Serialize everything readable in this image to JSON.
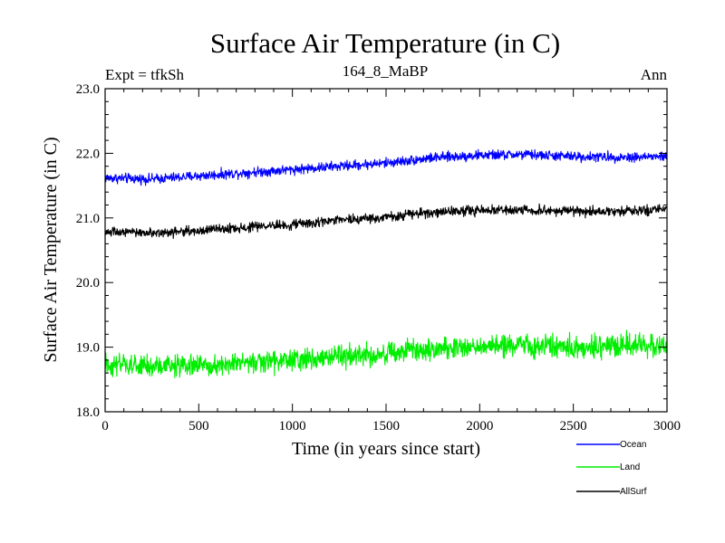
{
  "chart_data": {
    "type": "line",
    "title": "Surface Air Temperature (in C)",
    "subtitle_left": "Expt = tfkSh",
    "subtitle_center": "164_8_MaBP",
    "subtitle_right": "Ann",
    "xlabel": "Time (in years since start)",
    "ylabel": "Surface Air Temperature (in C)",
    "xlim": [
      0,
      3000
    ],
    "ylim": [
      18.0,
      23.0
    ],
    "xticks": [
      0,
      500,
      1000,
      1500,
      2000,
      2500,
      3000
    ],
    "xtick_labels": [
      "0",
      "500",
      "1000",
      "1500",
      "2000",
      "2500",
      "3000"
    ],
    "yticks": [
      18.0,
      19.0,
      20.0,
      21.0,
      22.0,
      23.0
    ],
    "ytick_labels": [
      "18.0",
      "19.0",
      "20.0",
      "21.0",
      "22.0",
      "23.0"
    ],
    "grid": false,
    "legend_position": "bottom-right, below plot",
    "series": [
      {
        "name": "Ocean",
        "color": "#0000ff",
        "x": [
          0,
          250,
          500,
          750,
          1000,
          1250,
          1500,
          1750,
          2000,
          2250,
          2500,
          2750,
          3000
        ],
        "values": [
          21.62,
          21.6,
          21.65,
          21.7,
          21.75,
          21.8,
          21.85,
          21.93,
          21.97,
          21.98,
          21.95,
          21.94,
          21.95
        ],
        "noise_amplitude": 0.07
      },
      {
        "name": "Land",
        "color": "#00ee00",
        "x": [
          0,
          250,
          500,
          750,
          1000,
          1250,
          1500,
          1750,
          2000,
          2250,
          2500,
          2750,
          3000
        ],
        "values": [
          18.72,
          18.7,
          18.72,
          18.75,
          18.8,
          18.86,
          18.9,
          18.97,
          19.02,
          19.03,
          19.0,
          19.02,
          19.04
        ],
        "noise_amplitude": 0.16
      },
      {
        "name": "AllSurf",
        "color": "#000000",
        "x": [
          0,
          250,
          500,
          750,
          1000,
          1250,
          1500,
          1750,
          2000,
          2250,
          2500,
          2750,
          3000
        ],
        "values": [
          20.78,
          20.77,
          20.8,
          20.85,
          20.9,
          20.96,
          21.02,
          21.08,
          21.12,
          21.12,
          21.1,
          21.1,
          21.12
        ],
        "noise_amplitude": 0.07
      }
    ]
  }
}
